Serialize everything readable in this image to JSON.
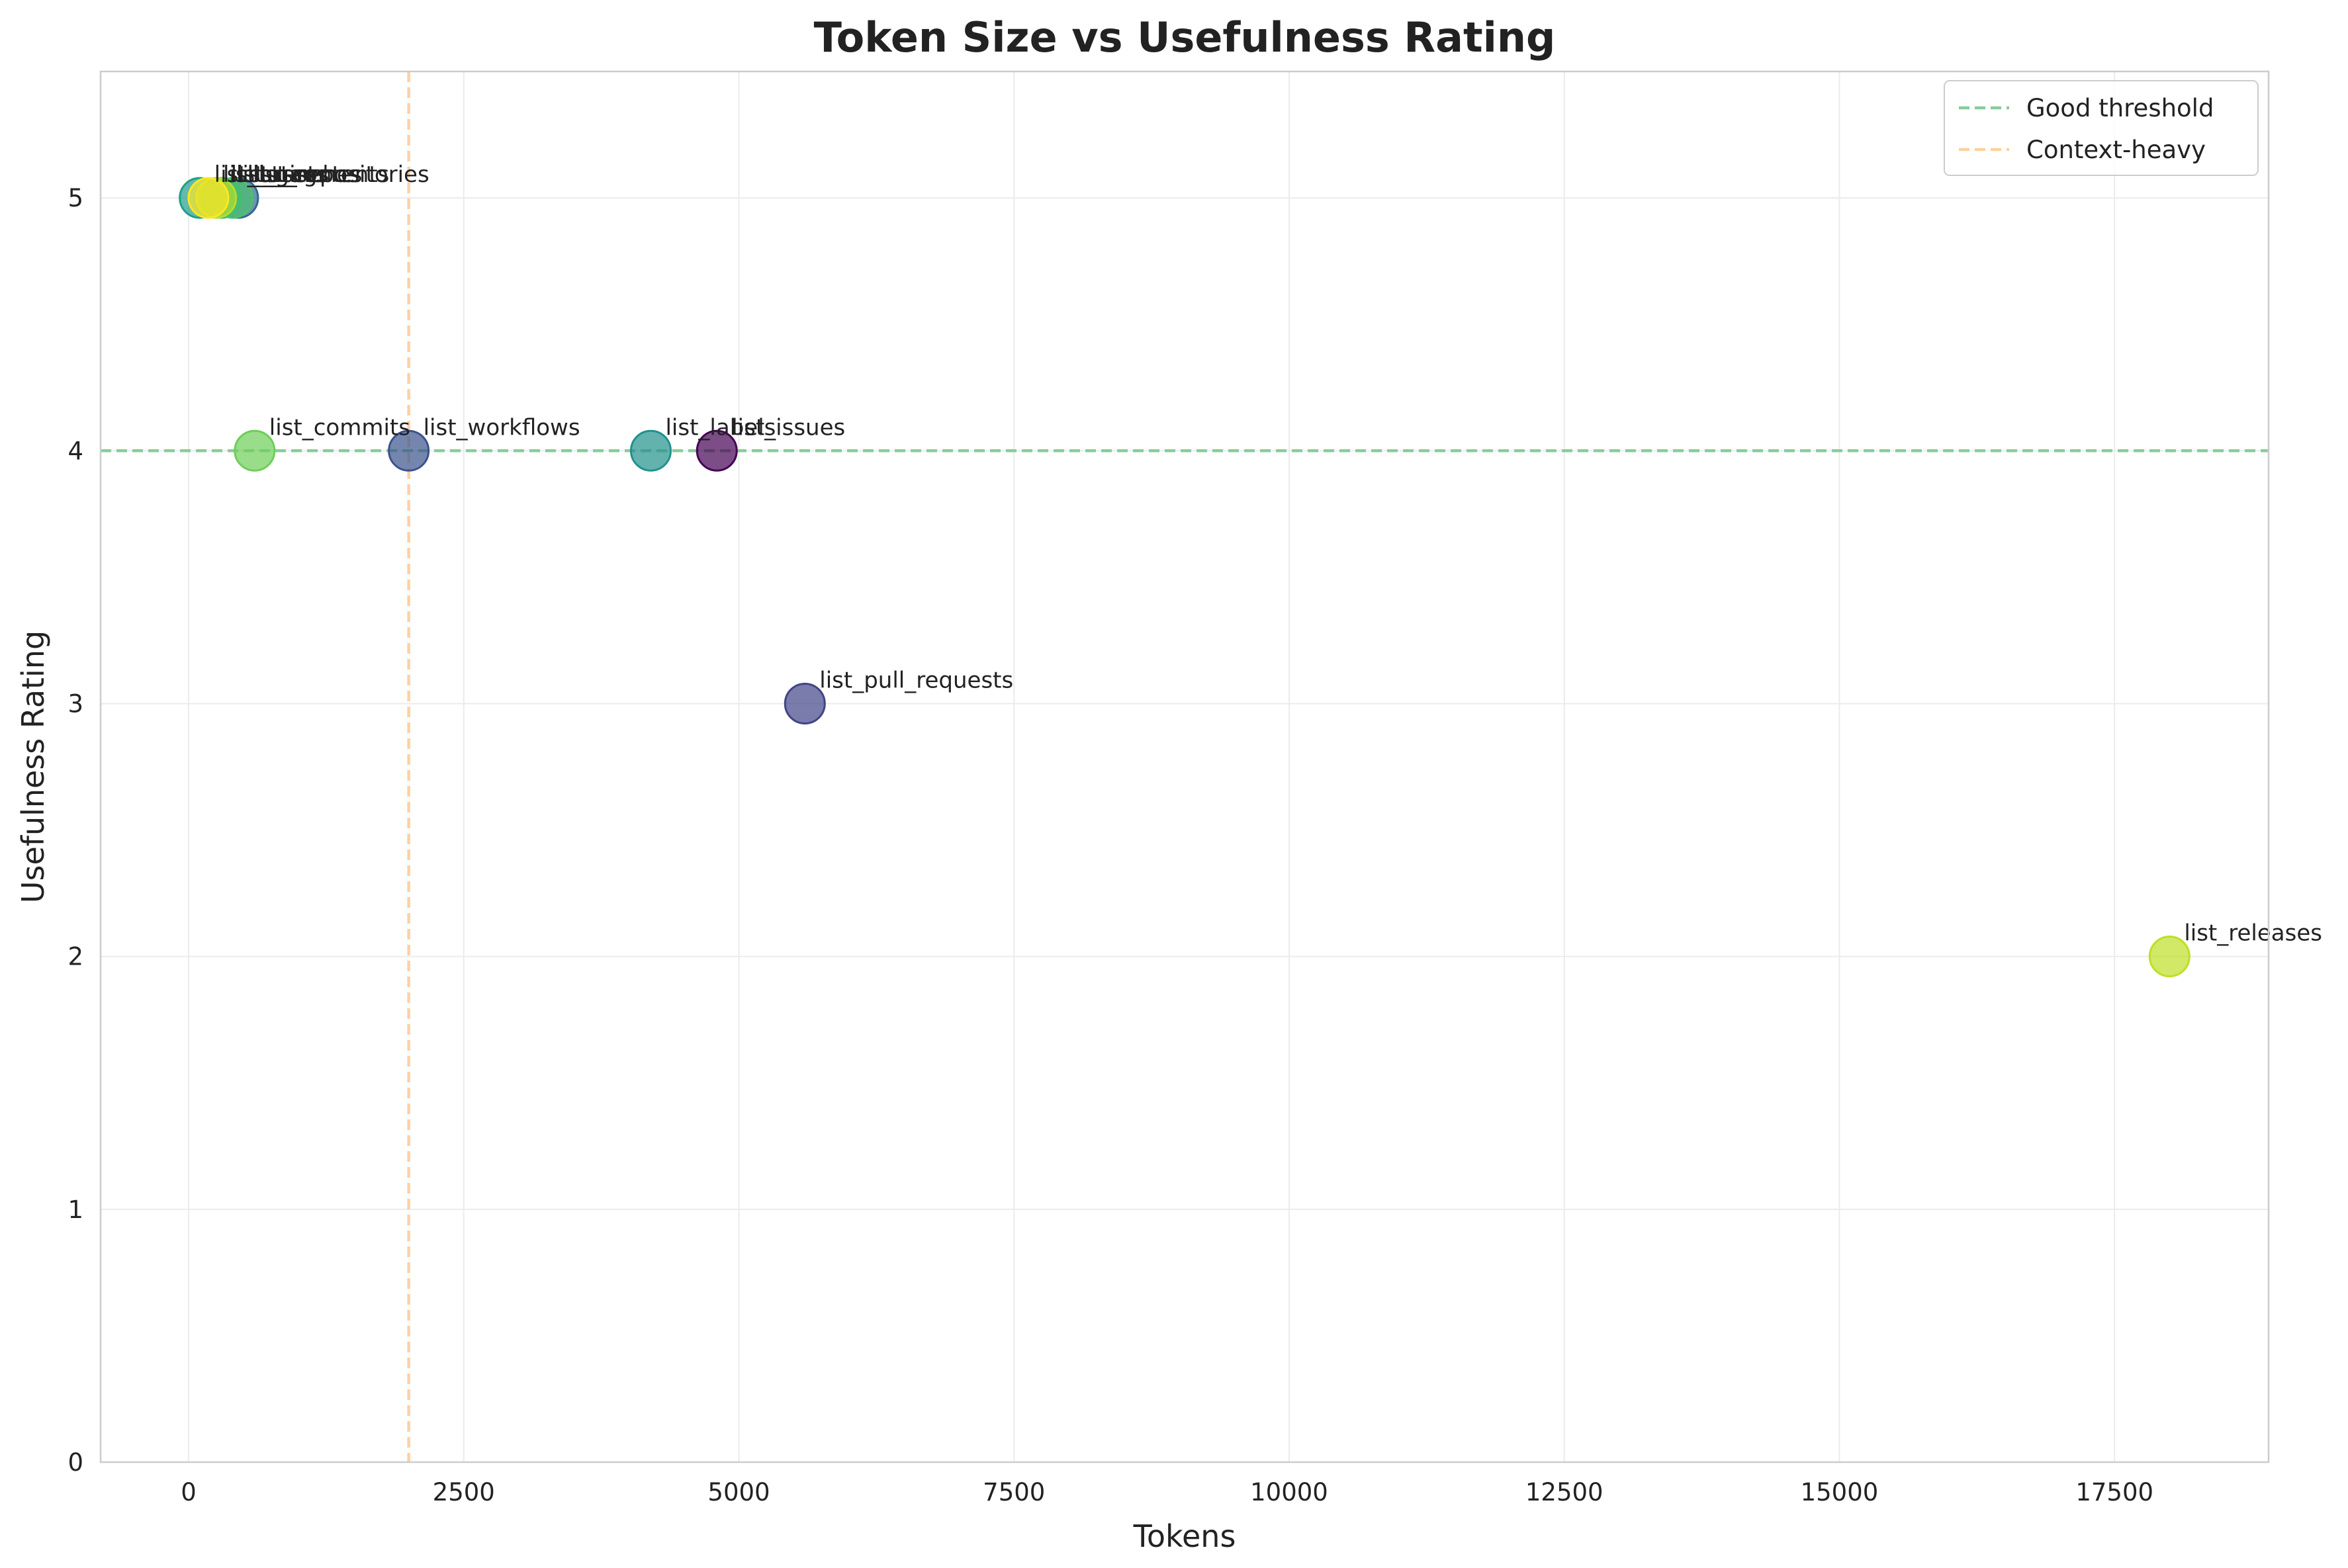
{
  "chart_data": {
    "type": "scatter",
    "title": "Token Size vs Usefulness Rating",
    "xlabel": "Tokens",
    "ylabel": "Usefulness Rating",
    "xlim": [
      -800,
      18900
    ],
    "ylim": [
      0,
      5.5
    ],
    "x_ticks": [
      0,
      2500,
      5000,
      7500,
      10000,
      12500,
      15000,
      17500
    ],
    "y_ticks": [
      0,
      1,
      2,
      3,
      4,
      5
    ],
    "grid": true,
    "legend_position": "top-right",
    "colormap": "viridis",
    "points": [
      {
        "label": "list_issues",
        "x": 4800,
        "y": 4,
        "color": "#440154"
      },
      {
        "label": "list_pull_requests",
        "x": 5600,
        "y": 3,
        "color": "#414487"
      },
      {
        "label": "list_workflows",
        "x": 2000,
        "y": 4,
        "color": "#3b528b"
      },
      {
        "label": "list_repositories",
        "x": 450,
        "y": 5,
        "color": "#31688e"
      },
      {
        "label": "list_labels",
        "x": 4200,
        "y": 4,
        "color": "#21918c"
      },
      {
        "label": "list_branches",
        "x": 100,
        "y": 5,
        "color": "#1f9e89"
      },
      {
        "label": "list_tags",
        "x": 300,
        "y": 5,
        "color": "#35b779"
      },
      {
        "label": "list_contents",
        "x": 400,
        "y": 5,
        "color": "#4ac16d"
      },
      {
        "label": "list_commits",
        "x": 600,
        "y": 4,
        "color": "#6ece58"
      },
      {
        "label": "list_gists",
        "x": 250,
        "y": 5,
        "color": "#b5de2b"
      },
      {
        "label": "list_releases",
        "x": 18000,
        "y": 2,
        "color": "#bddf26"
      },
      {
        "label": "list_users",
        "x": 180,
        "y": 5,
        "color": "#fde725"
      }
    ],
    "reference_lines": [
      {
        "name": "Good threshold",
        "orientation": "horizontal",
        "value": 4,
        "color": "#88cc99",
        "style": "dashed"
      },
      {
        "name": "Context-heavy",
        "orientation": "vertical",
        "value": 2000,
        "color": "#ffd0a0",
        "style": "dashed"
      }
    ]
  }
}
